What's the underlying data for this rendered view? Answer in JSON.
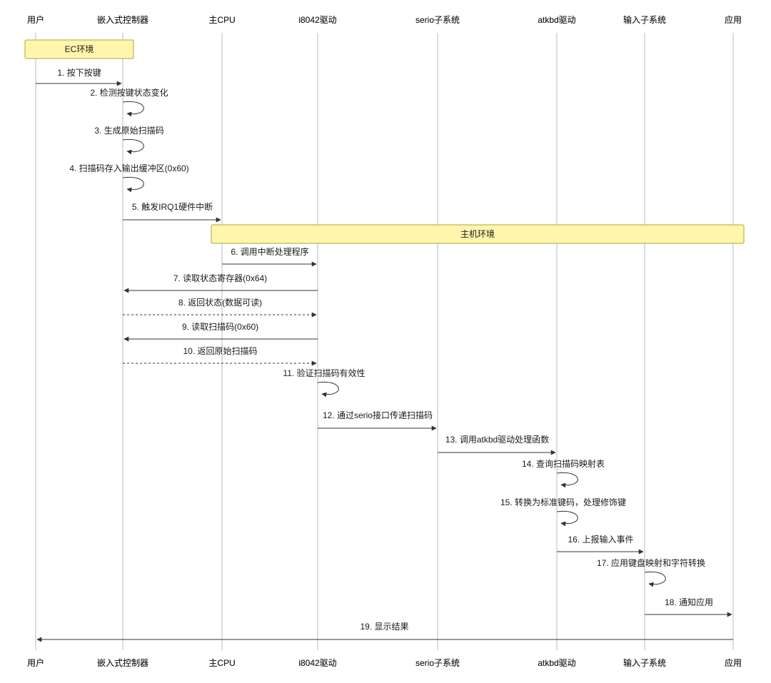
{
  "diagram": {
    "title": "keyboard-input-sequence-diagram",
    "actors": [
      "用户",
      "嵌入式控制器",
      "主CPU",
      "i8042驱动",
      "serio子系统",
      "atkbd驱动",
      "输入子系统",
      "应用"
    ],
    "notes": [
      {
        "label": "EC环境",
        "over": [
          0,
          1
        ]
      },
      {
        "label": "主机环境",
        "over": [
          2,
          7
        ]
      }
    ],
    "messages": [
      {
        "n": 1,
        "text": "1. 按下按键",
        "from": 0,
        "to": 1,
        "kind": "solid"
      },
      {
        "n": 2,
        "text": "2. 检测按键状态变化",
        "from": 1,
        "to": 1,
        "kind": "self"
      },
      {
        "n": 3,
        "text": "3. 生成原始扫描码",
        "from": 1,
        "to": 1,
        "kind": "self"
      },
      {
        "n": 4,
        "text": "4. 扫描码存入输出缓冲区(0x60)",
        "from": 1,
        "to": 1,
        "kind": "self"
      },
      {
        "n": 5,
        "text": "5. 触发IRQ1硬件中断",
        "from": 1,
        "to": 2,
        "kind": "solid"
      },
      {
        "n": 6,
        "text": "6. 调用中断处理程序",
        "from": 2,
        "to": 3,
        "kind": "solid"
      },
      {
        "n": 7,
        "text": "7. 读取状态寄存器(0x64)",
        "from": 3,
        "to": 1,
        "kind": "solid"
      },
      {
        "n": 8,
        "text": "8. 返回状态(数据可读)",
        "from": 1,
        "to": 3,
        "kind": "dashed"
      },
      {
        "n": 9,
        "text": "9. 读取扫描码(0x60)",
        "from": 3,
        "to": 1,
        "kind": "solid"
      },
      {
        "n": 10,
        "text": "10. 返回原始扫描码",
        "from": 1,
        "to": 3,
        "kind": "dashed"
      },
      {
        "n": 11,
        "text": "11. 验证扫描码有效性",
        "from": 3,
        "to": 3,
        "kind": "self"
      },
      {
        "n": 12,
        "text": "12. 通过serio接口传递扫描码",
        "from": 3,
        "to": 4,
        "kind": "solid"
      },
      {
        "n": 13,
        "text": "13. 调用atkbd驱动处理函数",
        "from": 4,
        "to": 5,
        "kind": "solid"
      },
      {
        "n": 14,
        "text": "14. 查询扫描码映射表",
        "from": 5,
        "to": 5,
        "kind": "self"
      },
      {
        "n": 15,
        "text": "15. 转换为标准键码，处理修饰键",
        "from": 5,
        "to": 5,
        "kind": "self"
      },
      {
        "n": 16,
        "text": "16. 上报输入事件",
        "from": 5,
        "to": 6,
        "kind": "solid"
      },
      {
        "n": 17,
        "text": "17. 应用键盘映射和字符转换",
        "from": 6,
        "to": 6,
        "kind": "self"
      },
      {
        "n": 18,
        "text": "18. 通知应用",
        "from": 6,
        "to": 7,
        "kind": "solid"
      },
      {
        "n": 19,
        "text": "19. 显示结果",
        "from": 7,
        "to": 0,
        "kind": "solid"
      }
    ],
    "colors": {
      "actor_fill": "#ECECFF",
      "actor_border": "#9FA0D0",
      "note_fill": "#FFF5AD",
      "note_border": "#AAAA33",
      "line": "#333333",
      "lifeline": "#B9B9CF",
      "text": "#1a1a1a"
    }
  }
}
